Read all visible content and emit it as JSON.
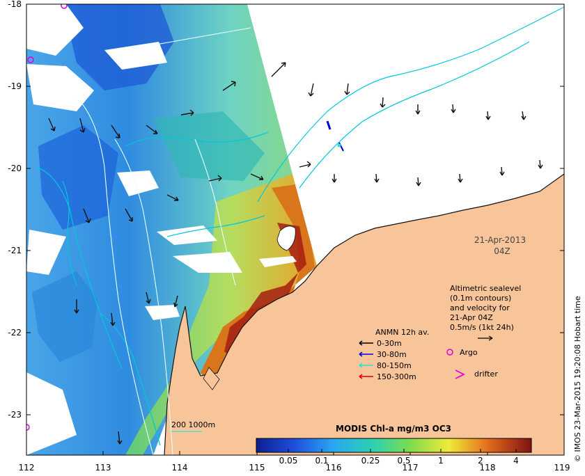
{
  "map": {
    "date_label": "21-Apr-2013",
    "time_label": "04Z",
    "x_ticks": [
      "112",
      "113",
      "114",
      "115",
      "116",
      "117",
      "118",
      "119"
    ],
    "y_ticks": [
      "-18",
      "-19",
      "-20",
      "-21",
      "-22",
      "-23"
    ],
    "copyright": "© IMOS 23-Mar-2015 19:20:08 Hobart time",
    "altimetry_note": {
      "lines": [
        "Altimetric sealevel",
        "(0.1m contours)",
        "and velocity for",
        "21-Apr 04Z",
        "0.5m/s (1kt 24h)"
      ]
    },
    "anmn": {
      "title": "ANMN 12h av.",
      "entries": [
        {
          "label": "0-30m",
          "color": "#000000"
        },
        {
          "label": "30-80m",
          "color": "#0000dd"
        },
        {
          "label": "80-150m",
          "color": "#33dddd"
        },
        {
          "label": "150-300m",
          "color": "#dd0000"
        }
      ]
    },
    "markers": {
      "argo_label": "Argo",
      "drifter_label": "drifter",
      "argo_color": "#e000e0",
      "drifter_color": "#e000e0"
    },
    "bathymetry_label": "200 1000m",
    "colorbar": {
      "title": "MODIS Chl-a mg/m3 OC3",
      "ticks": [
        "0.05",
        "0.1",
        "0.25",
        "0.5",
        "1",
        "2",
        "4"
      ]
    },
    "colors": {
      "land": "#f8c49a",
      "ocean_mask": "#ffffff",
      "contour": "#00c8d8",
      "isobath": "#e8ffff"
    }
  }
}
